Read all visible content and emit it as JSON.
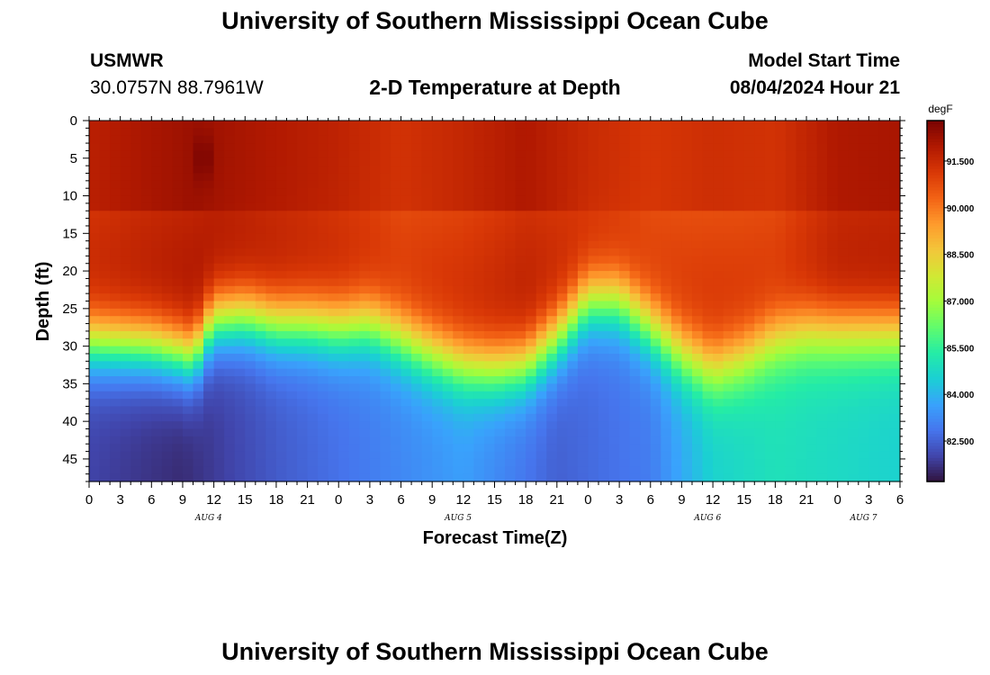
{
  "header": {
    "title": "University of Southern Mississippi Ocean Cube",
    "station": "USMWR",
    "coords": "30.0757N  88.7961W",
    "plot_title": "2-D Temperature at Depth",
    "model_label": "Model Start Time",
    "model_time": "08/04/2024 Hour 21"
  },
  "footer": {
    "title": "University of Southern Mississippi Ocean Cube"
  },
  "chart_data": {
    "type": "heatmap",
    "title": "2-D Temperature at Depth",
    "xlabel": "Forecast Time(Z)",
    "ylabel": "Depth (ft)",
    "x_range_hours": [
      0,
      78
    ],
    "x_ticks": [
      0,
      3,
      6,
      9,
      12,
      15,
      18,
      21,
      24,
      27,
      30,
      33,
      36,
      39,
      42,
      45,
      48,
      51,
      54,
      57,
      60,
      63,
      66,
      69,
      72,
      75,
      78
    ],
    "x_tick_labels": [
      "0",
      "3",
      "6",
      "9",
      "12",
      "15",
      "18",
      "21",
      "0",
      "3",
      "6",
      "9",
      "12",
      "15",
      "18",
      "21",
      "0",
      "3",
      "6",
      "9",
      "12",
      "15",
      "18",
      "21",
      "0",
      "3",
      "6"
    ],
    "day_labels": [
      {
        "text": "AUG 4",
        "hour": 11.5
      },
      {
        "text": "AUG 5",
        "hour": 35.5
      },
      {
        "text": "AUG 6",
        "hour": 59.5
      },
      {
        "text": "AUG 7",
        "hour": 74.5
      }
    ],
    "y_range_ft": [
      0,
      48
    ],
    "y_ticks": [
      0,
      5,
      10,
      15,
      20,
      25,
      30,
      35,
      40,
      45
    ],
    "y_tick_labels": [
      "0",
      "5",
      "10",
      "15",
      "20",
      "25",
      "30",
      "35",
      "40",
      "45"
    ],
    "colorbar": {
      "unit": "degF",
      "range": [
        81.2,
        92.8
      ],
      "ticks": [
        82.5,
        84.0,
        85.5,
        87.0,
        88.5,
        90.0,
        91.5
      ],
      "tick_labels": [
        "82.500",
        "84.000",
        "85.500",
        "87.000",
        "88.500",
        "90.000",
        "91.500"
      ],
      "colormap": [
        "#30123b",
        "#4145ab",
        "#4675ed",
        "#39a2fc",
        "#1bcfd4",
        "#24eca6",
        "#61fc6c",
        "#a4fc3b",
        "#d1e834",
        "#f3c63a",
        "#fe9b2d",
        "#f36315",
        "#d93806",
        "#b11901",
        "#7a0402"
      ]
    },
    "thermocline_depth_ft": {
      "hours": [
        0,
        6,
        9,
        10,
        12,
        15,
        18,
        21,
        24,
        27,
        30,
        33,
        36,
        39,
        42,
        45,
        48,
        51,
        54,
        57,
        60,
        63,
        66,
        69,
        72,
        75,
        78
      ],
      "depth": [
        29.5,
        30,
        31,
        31.5,
        26.5,
        26,
        27,
        27,
        27.5,
        27,
        29,
        31,
        32.5,
        33,
        32.5,
        29,
        24,
        24,
        27.5,
        31,
        33,
        31.5,
        29,
        28,
        28,
        28,
        28
      ]
    },
    "surface_temp_degF": {
      "hours": [
        0,
        10,
        24,
        30,
        36,
        42,
        48,
        54,
        60,
        66,
        72,
        78
      ],
      "temp": [
        91.8,
        92.3,
        91.7,
        91.3,
        91.6,
        92.0,
        91.5,
        91.2,
        91.4,
        91.3,
        92.0,
        92.1
      ]
    },
    "bottom_temp_degF": {
      "hours": [
        0,
        9,
        18,
        24,
        36,
        45,
        54,
        60,
        66,
        78
      ],
      "temp": [
        82.0,
        81.6,
        82.4,
        82.8,
        83.6,
        82.5,
        83.0,
        84.6,
        85.0,
        84.6
      ]
    },
    "warm_anomaly": {
      "hour": 11,
      "depth_ft": 5,
      "temp_degF": 92.8
    }
  }
}
